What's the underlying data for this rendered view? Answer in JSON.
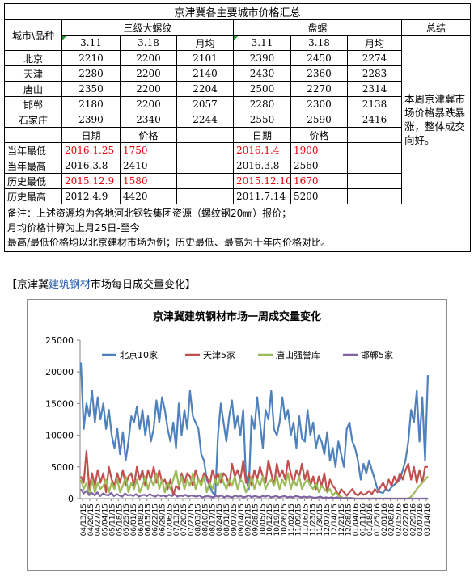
{
  "table": {
    "title": "京津冀各主要城市价格汇总",
    "corner": "城市\\品种",
    "product1": "三级大螺纹",
    "product2": "盘螺",
    "summary_header": "总结",
    "col_headers": [
      "3.11",
      "3.18",
      "月均",
      "3.11",
      "3.18",
      "月均"
    ],
    "rows": [
      {
        "city": "北京",
        "v": [
          "2210",
          "2200",
          "2101",
          "2390",
          "2450",
          "2274"
        ]
      },
      {
        "city": "天津",
        "v": [
          "2280",
          "2200",
          "2140",
          "2430",
          "2360",
          "2283"
        ]
      },
      {
        "city": "唐山",
        "v": [
          "2350",
          "2200",
          "2204",
          "2500",
          "2270",
          "2314"
        ]
      },
      {
        "city": "邯郸",
        "v": [
          "2180",
          "2200",
          "2057",
          "2280",
          "2300",
          "2138"
        ]
      },
      {
        "city": "石家庄",
        "v": [
          "2390",
          "2340",
          "2244",
          "2550",
          "2590",
          "2416"
        ]
      }
    ],
    "date_label": "日期",
    "price_label": "价格",
    "extremes": [
      {
        "label": "当年最低",
        "d1": "2016.1.25",
        "p1": "1750",
        "d2": "2016.1.4",
        "p2": "1900",
        "red": true
      },
      {
        "label": "当年最高",
        "d1": "2016.3.8",
        "p1": "2410",
        "d2": "2016.3.8",
        "p2": "2560",
        "red": false
      },
      {
        "label": "历史最低",
        "d1": "2015.12.9",
        "p1": "1580",
        "d2": "2015.12.10",
        "p2": "1670",
        "red": true
      },
      {
        "label": "历史最高",
        "d1": "2012.4.9",
        "p1": "4420",
        "d2": "2011.7.14",
        "p2": "5200",
        "red": false
      }
    ],
    "summary": "本周京津冀市场价格暴跌暴涨，整体成交向好。",
    "notes": [
      "备注：上述资源均为各地河北钢铁集团资源（螺纹钢20㎜）报价；",
      "月均价格计算为上月25日-至今",
      "最高/最低价格均以北京建材市场为例；历史最低、最高为十年内价格对比。"
    ]
  },
  "section": {
    "prefix": "【京津冀",
    "link": "建筑钢材",
    "suffix": "市场每日成交量变化】"
  },
  "chart_data": {
    "type": "line",
    "title": "京津冀建筑钢材市场一周成交量变化",
    "ylim": [
      0,
      25000
    ],
    "yticks": [
      0,
      5000,
      10000,
      15000,
      20000,
      25000
    ],
    "grid": false,
    "legend_position": "top",
    "x_labels": [
      "04/13/15",
      "04/20/15",
      "04/27/15",
      "05/04/15",
      "05/11/15",
      "05/18/15",
      "05/25/15",
      "06/01/15",
      "06/08/15",
      "06/15/15",
      "06/22/15",
      "06/29/15",
      "07/06/15",
      "07/13/15",
      "07/20/15",
      "07/27/15",
      "08/03/15",
      "08/10/15",
      "08/17/15",
      "08/24/15",
      "08/31/15",
      "09/07/15",
      "09/14/15",
      "09/21/15",
      "09/28/15",
      "10/05/15",
      "10/12/15",
      "10/19/15",
      "10/26/15",
      "11/02/15",
      "11/09/15",
      "11/16/15",
      "11/23/15",
      "11/30/15",
      "12/07/15",
      "12/14/15",
      "12/21/15",
      "12/28/15",
      "01/04/16",
      "01/11/16",
      "01/18/16",
      "01/25/16",
      "02/01/16",
      "02/08/16",
      "02/15/16",
      "02/22/16",
      "02/29/16",
      "03/07/16",
      "03/14/16"
    ],
    "series": [
      {
        "name": "北京10家",
        "color": "#4f81bd",
        "values": [
          21500,
          11000,
          15000,
          13000,
          17000,
          12000,
          16000,
          12500,
          15000,
          11000,
          14000,
          10000,
          8000,
          11000,
          7000,
          10500,
          6000,
          9000,
          13000,
          12000,
          14500,
          11000,
          14000,
          10000,
          13000,
          9000,
          11000,
          15500,
          12000,
          16000,
          14000,
          11000,
          9000,
          12000,
          8000,
          15000,
          10000,
          14000,
          11000,
          17000,
          13000,
          12000,
          11000,
          7000,
          6000,
          3000,
          2000,
          1000,
          500,
          10000,
          15000,
          12000,
          9000,
          13000,
          15500,
          11000,
          13000,
          10000,
          14000,
          3000,
          1500,
          13000,
          11000,
          16000,
          12000,
          8000,
          14000,
          12500,
          17000,
          11000,
          10000,
          12000,
          16000,
          12500,
          14000,
          10000,
          12000,
          8000,
          13000,
          9500,
          9000,
          14000,
          10000,
          12000,
          8000,
          10000,
          9000,
          7000,
          10500,
          6000,
          8000,
          5000,
          9000,
          7000,
          5000,
          11000,
          12000,
          9000,
          8000,
          6000,
          3000,
          5500,
          4000,
          6000,
          4500,
          3000,
          1500,
          1000,
          900,
          1600,
          1200,
          1800,
          2200,
          2600,
          3000,
          4500,
          6000,
          9000,
          14000,
          12000,
          17000,
          9000,
          16000,
          6000,
          19500
        ]
      },
      {
        "name": "天津5家",
        "color": "#c0504d",
        "values": [
          3500,
          2500,
          7500,
          1500,
          4000,
          2000,
          4500,
          2500,
          4000,
          1000,
          5000,
          3000,
          2000,
          4000,
          2500,
          4500,
          2000,
          3500,
          4000,
          2000,
          5000,
          3000,
          4500,
          2000,
          4500,
          3000,
          5000,
          2500,
          4500,
          2500,
          3000,
          1500,
          3000,
          500,
          2000,
          1500,
          4000,
          2500,
          4000,
          3500,
          2000,
          4500,
          3000,
          2500,
          4000,
          3500,
          2000,
          4500,
          3000,
          4000,
          2500,
          4000,
          3500,
          2000,
          5500,
          3500,
          4500,
          3000,
          6000,
          2500,
          4000,
          2000,
          4500,
          3000,
          5000,
          3500,
          2500,
          6000,
          4000,
          2000,
          5500,
          3500,
          4500,
          3000,
          6000,
          4000,
          2500,
          4500,
          3500,
          5500,
          3000,
          4500,
          2000,
          3500,
          1500,
          3500,
          2000,
          4000,
          1000,
          3000,
          2000,
          1500,
          500,
          1500,
          1000,
          500,
          1000,
          1500,
          800,
          500,
          1000,
          600,
          800,
          1200,
          700,
          1500,
          1000,
          1800,
          2500,
          1500,
          3000,
          2000,
          3500,
          2500,
          4000,
          3000,
          4500,
          5500,
          3000,
          5000,
          2500,
          4500,
          2500,
          5000,
          5000
        ]
      },
      {
        "name": "唐山强誉库",
        "color": "#9bbb59",
        "values": [
          3000,
          1500,
          2500,
          500,
          3000,
          1000,
          2500,
          1500,
          2000,
          3000,
          1000,
          2500,
          1500,
          3000,
          1000,
          2000,
          3500,
          1000,
          2500,
          1500,
          3000,
          1000,
          2000,
          3500,
          1500,
          3000,
          2000,
          4000,
          1500,
          3000,
          1000,
          2500,
          1500,
          3000,
          4500,
          2000,
          3500,
          1500,
          3000,
          2000,
          4000,
          1500,
          3000,
          2000,
          3500,
          1000,
          2500,
          1500,
          3000,
          2000,
          4000,
          2500,
          1500,
          3000,
          2000,
          3500,
          1500,
          3000,
          2500,
          1000,
          2000,
          3500,
          1500,
          3000,
          2000,
          3500,
          1500,
          2500,
          3000,
          2000,
          3500,
          1500,
          3000,
          2000,
          4000,
          1500,
          3000,
          2000,
          3500,
          1500,
          2500,
          3000,
          2000,
          1500,
          2500,
          1000,
          2000,
          1500,
          1000,
          1500,
          500,
          1000,
          500,
          300,
          0,
          200,
          0,
          100,
          0,
          0,
          0,
          0,
          0,
          0,
          0,
          0,
          0,
          0,
          0,
          0,
          0,
          0,
          0,
          0,
          0,
          0,
          0,
          0,
          300,
          800,
          1500,
          2000,
          2500,
          3000,
          3500
        ]
      },
      {
        "name": "邯郸5家",
        "color": "#8064a2",
        "values": [
          1500,
          800,
          1200,
          600,
          900,
          500,
          1000,
          400,
          800,
          600,
          500,
          900,
          400,
          700,
          500,
          300,
          800,
          500,
          600,
          400,
          700,
          300,
          500,
          600,
          400,
          700,
          500,
          300,
          600,
          400,
          500,
          300,
          600,
          400,
          700,
          300,
          500,
          400,
          600,
          300,
          500,
          400,
          300,
          500,
          200,
          300,
          400,
          300,
          200,
          400,
          300,
          500,
          200,
          400,
          300,
          200,
          500,
          300,
          400,
          200,
          300,
          500,
          200,
          400,
          300,
          200,
          400,
          300,
          500,
          200,
          300,
          400,
          200,
          300,
          400,
          200,
          300,
          200,
          400,
          300,
          200,
          300,
          200,
          300,
          200,
          100,
          200,
          300,
          100,
          200,
          100,
          200,
          100,
          200,
          100,
          50,
          100,
          50,
          100,
          0,
          0,
          0,
          0,
          0,
          0,
          0,
          0,
          0,
          0,
          0,
          0,
          0,
          0,
          0,
          0,
          0,
          0,
          0,
          0,
          0,
          0,
          0,
          0,
          0,
          0,
          0,
          0
        ]
      }
    ]
  }
}
